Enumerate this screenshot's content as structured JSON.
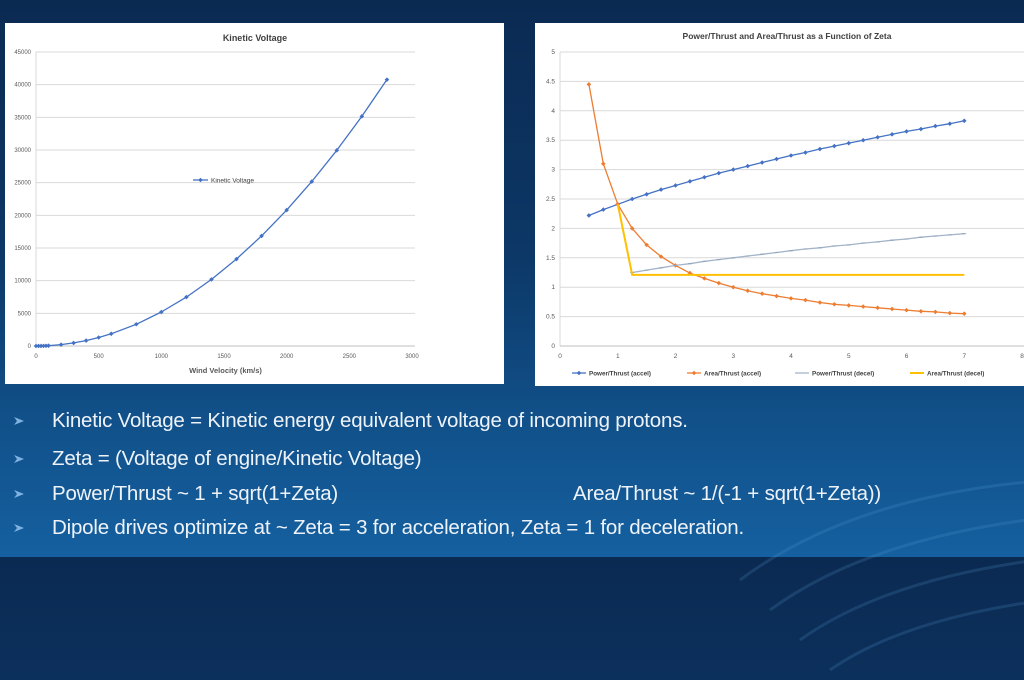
{
  "slide": {
    "bullets": [
      {
        "text": "Kinetic Voltage = Kinetic energy equivalent voltage of incoming protons."
      },
      {
        "text": "Zeta = (Voltage of engine/Kinetic Voltage)"
      },
      {
        "text": "Power/Thrust ~ 1 + sqrt(1+Zeta)",
        "text_right": "Area/Thrust ~ 1/(-1 + sqrt(1+Zeta))"
      },
      {
        "text": "Dipole drives optimize at ~ Zeta = 3 for acceleration, Zeta = 1 for deceleration."
      }
    ],
    "colors": {
      "background_top": "#0b2a52",
      "background_bottom": "#1560a0",
      "text": "#eef3f9",
      "bullet": "#7fb2e0"
    }
  },
  "chart_data": [
    {
      "type": "line",
      "title": "Kinetic Voltage",
      "xlabel": "Wind Velocity (km/s)",
      "ylabel": "",
      "xlim": [
        0,
        3000
      ],
      "ylim": [
        0,
        45000
      ],
      "xticks": [
        "0",
        "500",
        "1000",
        "1500",
        "2000",
        "2500",
        "3000"
      ],
      "yticks": [
        "0",
        "5000",
        "10000",
        "15000",
        "20000",
        "25000",
        "30000",
        "35000",
        "40000",
        "45000"
      ],
      "grid": true,
      "legend_position": "inside-center",
      "series": [
        {
          "name": "Kinetic Voltage",
          "color": "#4472c4",
          "x": [
            0,
            20,
            40,
            60,
            80,
            100,
            200,
            300,
            400,
            500,
            600,
            800,
            1000,
            1200,
            1400,
            1600,
            1800,
            2000,
            2200,
            2400,
            2600,
            2800
          ],
          "values": [
            0,
            2,
            8,
            19,
            33,
            52,
            208,
            468,
            832,
            1300,
            1872,
            3328,
            5200,
            7488,
            10192,
            13312,
            16848,
            20800,
            25168,
            29952,
            35152,
            40768
          ]
        }
      ]
    },
    {
      "type": "line",
      "title": "Power/Thrust and Area/Thrust as a Function of Zeta",
      "xlabel": "",
      "ylabel": "",
      "xlim": [
        0,
        8
      ],
      "ylim": [
        0,
        5
      ],
      "xticks": [
        "0",
        "1",
        "2",
        "3",
        "4",
        "5",
        "6",
        "7",
        "8"
      ],
      "yticks": [
        "0",
        "0.5",
        "1",
        "1.5",
        "2",
        "2.5",
        "3",
        "3.5",
        "4",
        "4.5",
        "5"
      ],
      "grid": true,
      "legend_position": "bottom",
      "series": [
        {
          "name": "Power/Thrust (accel)",
          "color": "#4472c4",
          "x": [
            0.5,
            0.75,
            1,
            1.25,
            1.5,
            1.75,
            2,
            2.25,
            2.5,
            2.75,
            3,
            3.25,
            3.5,
            3.75,
            4,
            4.25,
            4.5,
            4.75,
            5,
            5.25,
            5.5,
            5.75,
            6,
            6.25,
            6.5,
            6.75,
            7
          ],
          "values": [
            2.22,
            2.32,
            2.41,
            2.5,
            2.58,
            2.66,
            2.73,
            2.8,
            2.87,
            2.94,
            3.0,
            3.06,
            3.12,
            3.18,
            3.24,
            3.29,
            3.35,
            3.4,
            3.45,
            3.5,
            3.55,
            3.6,
            3.65,
            3.69,
            3.74,
            3.78,
            3.83
          ]
        },
        {
          "name": "Area/Thrust (accel)",
          "color": "#ed7d31",
          "x": [
            0.5,
            0.75,
            1,
            1.25,
            1.5,
            1.75,
            2,
            2.25,
            2.5,
            2.75,
            3,
            3.25,
            3.5,
            3.75,
            4,
            4.25,
            4.5,
            4.75,
            5,
            5.25,
            5.5,
            5.75,
            6,
            6.25,
            6.5,
            6.75,
            7
          ],
          "values": [
            4.45,
            3.1,
            2.41,
            2.0,
            1.72,
            1.52,
            1.37,
            1.24,
            1.15,
            1.07,
            1.0,
            0.94,
            0.89,
            0.85,
            0.81,
            0.78,
            0.74,
            0.71,
            0.69,
            0.67,
            0.65,
            0.63,
            0.61,
            0.59,
            0.58,
            0.56,
            0.55
          ]
        },
        {
          "name": "Power/Thrust (decel)",
          "color": "#a5b4c8",
          "x": [
            1.25,
            1.5,
            1.75,
            2,
            2.25,
            2.5,
            2.75,
            3,
            3.25,
            3.5,
            3.75,
            4,
            4.25,
            4.5,
            4.75,
            5,
            5.25,
            5.5,
            5.75,
            6,
            6.25,
            6.5,
            6.75,
            7
          ],
          "values": [
            1.25,
            1.29,
            1.33,
            1.37,
            1.4,
            1.44,
            1.47,
            1.5,
            1.53,
            1.56,
            1.59,
            1.62,
            1.65,
            1.67,
            1.7,
            1.72,
            1.75,
            1.77,
            1.8,
            1.82,
            1.85,
            1.87,
            1.89,
            1.91
          ]
        },
        {
          "name": "Area/Thrust (decel)",
          "color": "#ffc000",
          "x": [
            1,
            1.25,
            7
          ],
          "values": [
            2.41,
            1.21,
            1.21
          ]
        }
      ]
    }
  ]
}
